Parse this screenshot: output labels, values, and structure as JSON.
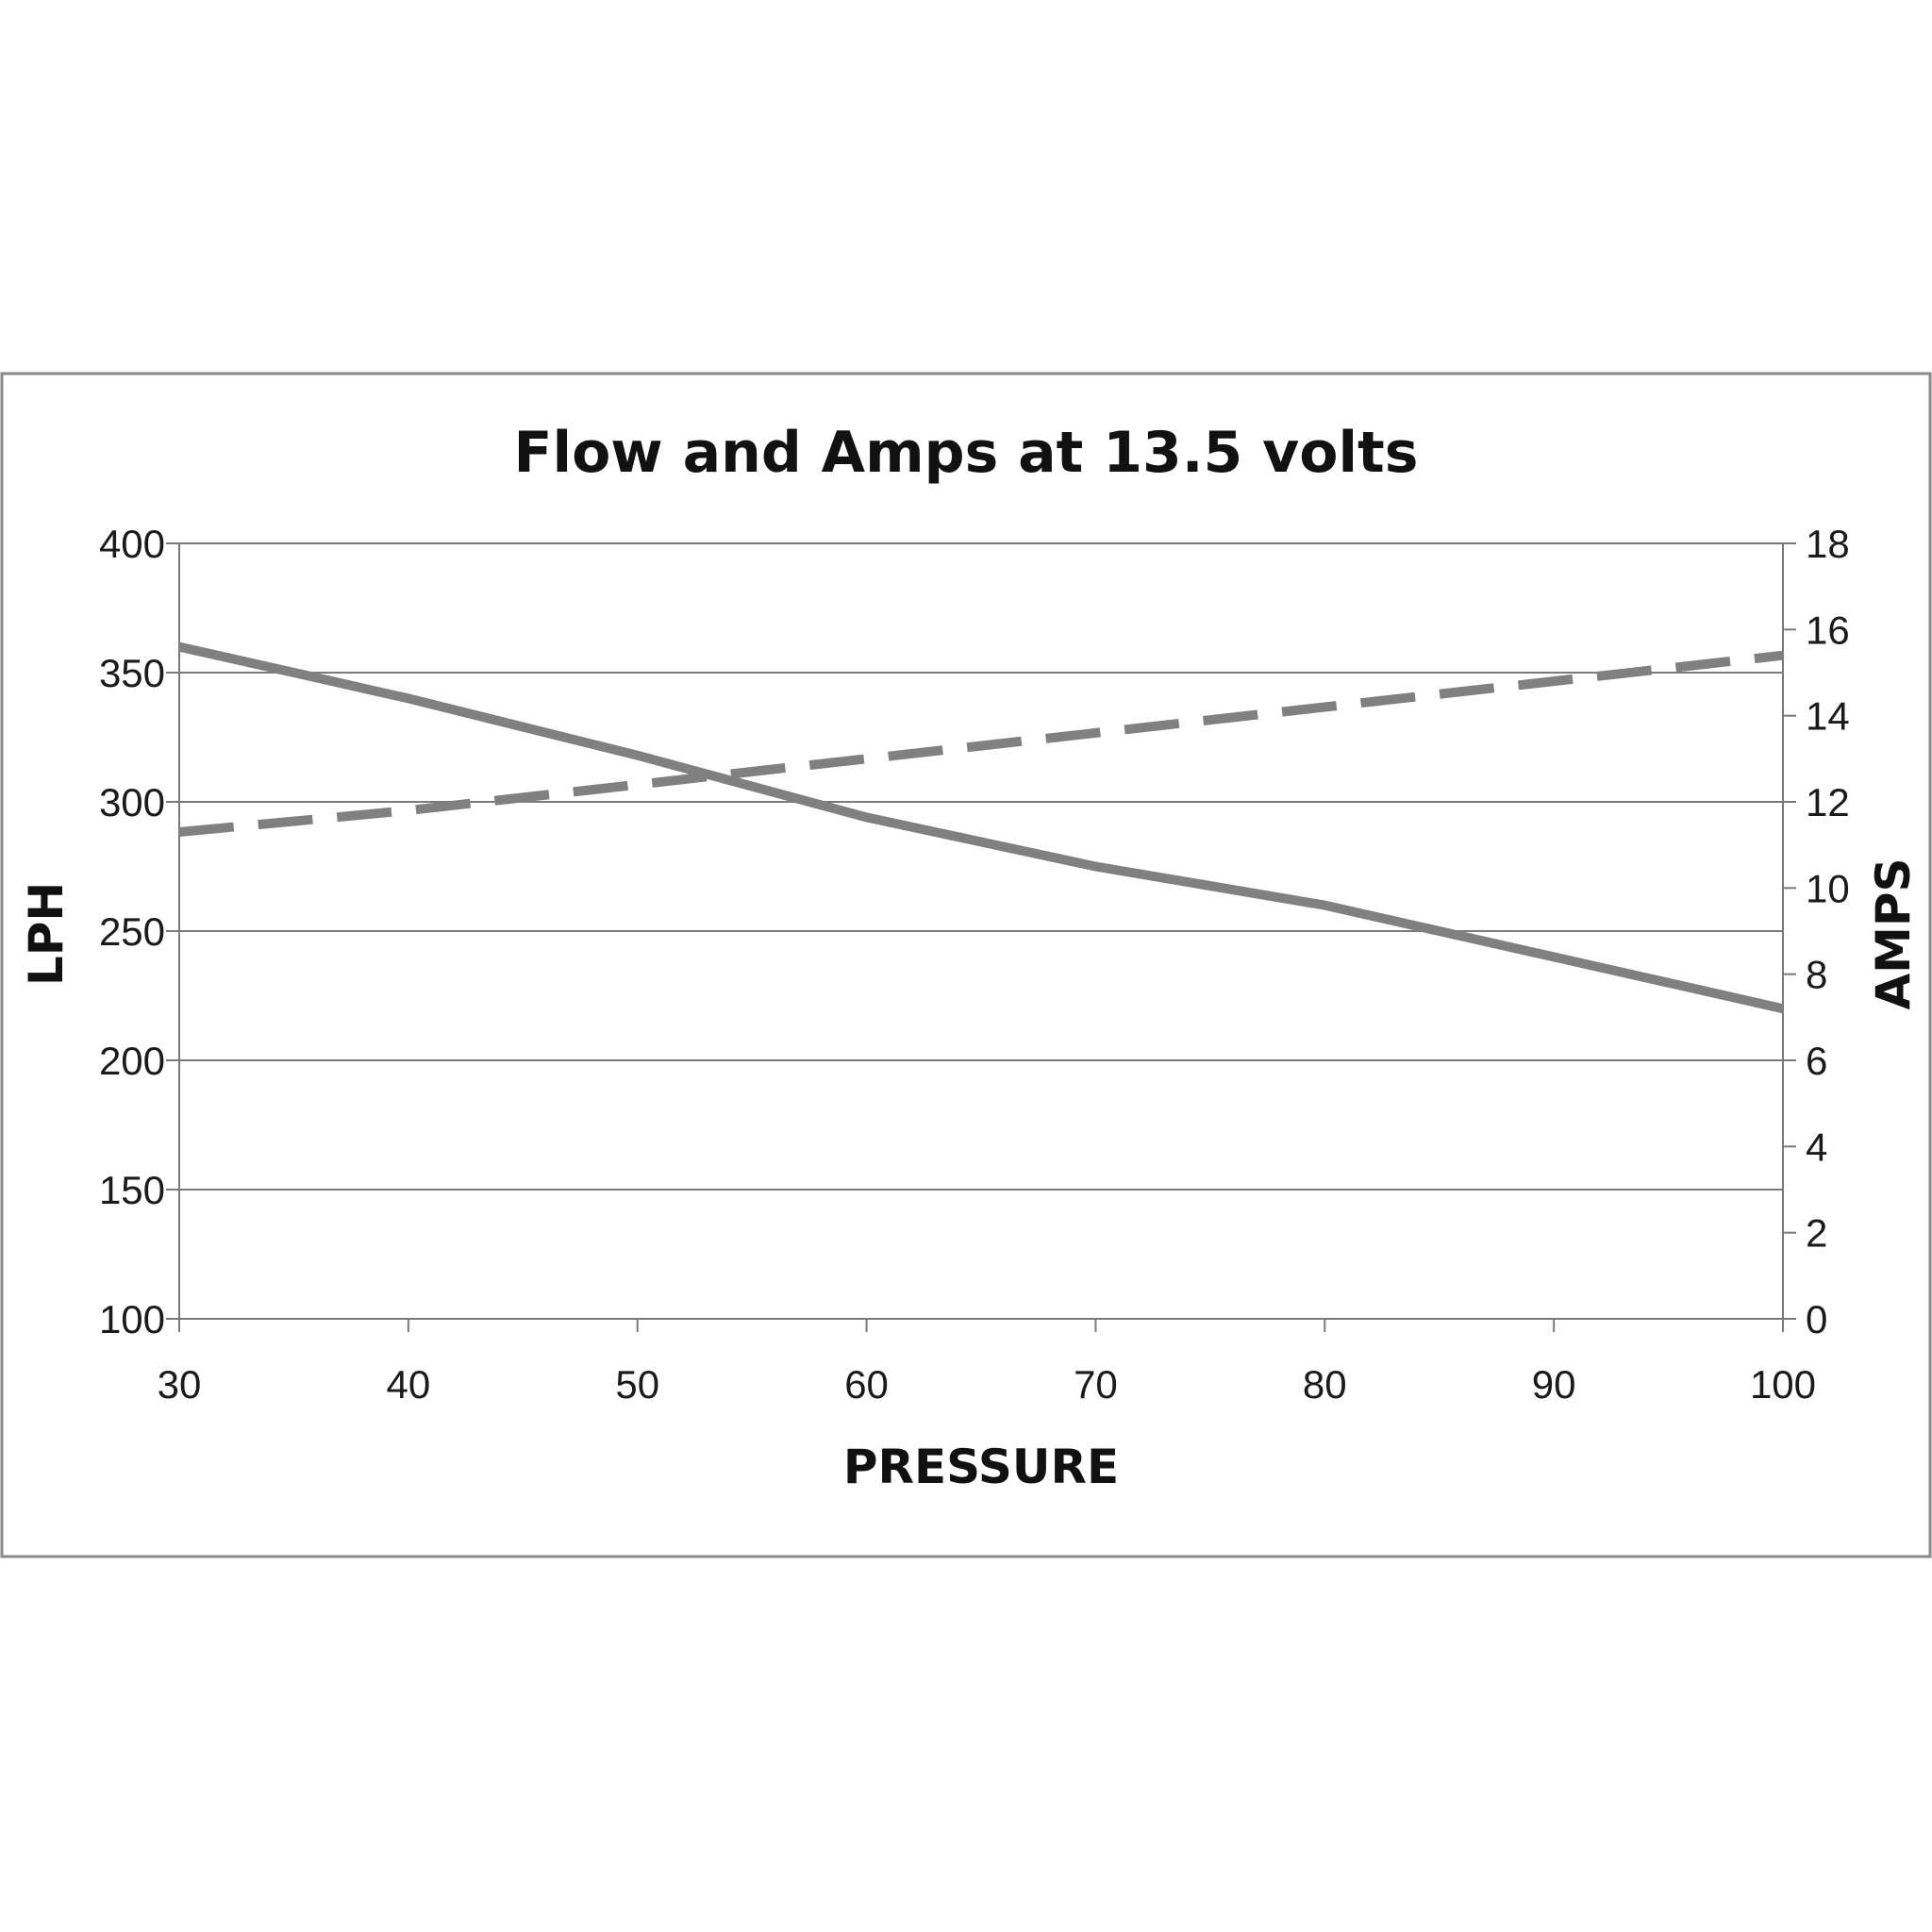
{
  "chart_data": {
    "type": "line",
    "title": "Flow and Amps at 13.5 volts",
    "xlabel": "PRESSURE",
    "ylabel": "LPH",
    "y2label": "AMPS",
    "xlim": [
      30,
      100
    ],
    "ylim": [
      100,
      400
    ],
    "y2lim": [
      0,
      18
    ],
    "x_ticks": [
      "30",
      "40",
      "50",
      "60",
      "70",
      "80",
      "90",
      "100"
    ],
    "y_ticks": [
      "100",
      "150",
      "200",
      "250",
      "300",
      "350",
      "400"
    ],
    "y2_ticks": [
      "0",
      "2",
      "4",
      "6",
      "8",
      "10",
      "12",
      "14",
      "16",
      "18"
    ],
    "grid": true,
    "legend": "none",
    "series": [
      {
        "axis": "left",
        "style": "solid",
        "color": "#808080",
        "x": [
          30,
          40,
          50,
          60,
          70,
          80,
          90,
          100
        ],
        "values": [
          360,
          340,
          318,
          294,
          275,
          260,
          240,
          220
        ]
      },
      {
        "axis": "right",
        "style": "dashed",
        "color": "#808080",
        "x": [
          30,
          40,
          50,
          60,
          70,
          80,
          90,
          100
        ],
        "values": [
          11.3,
          11.8,
          12.4,
          13.0,
          13.6,
          14.2,
          14.8,
          15.4
        ]
      }
    ]
  }
}
